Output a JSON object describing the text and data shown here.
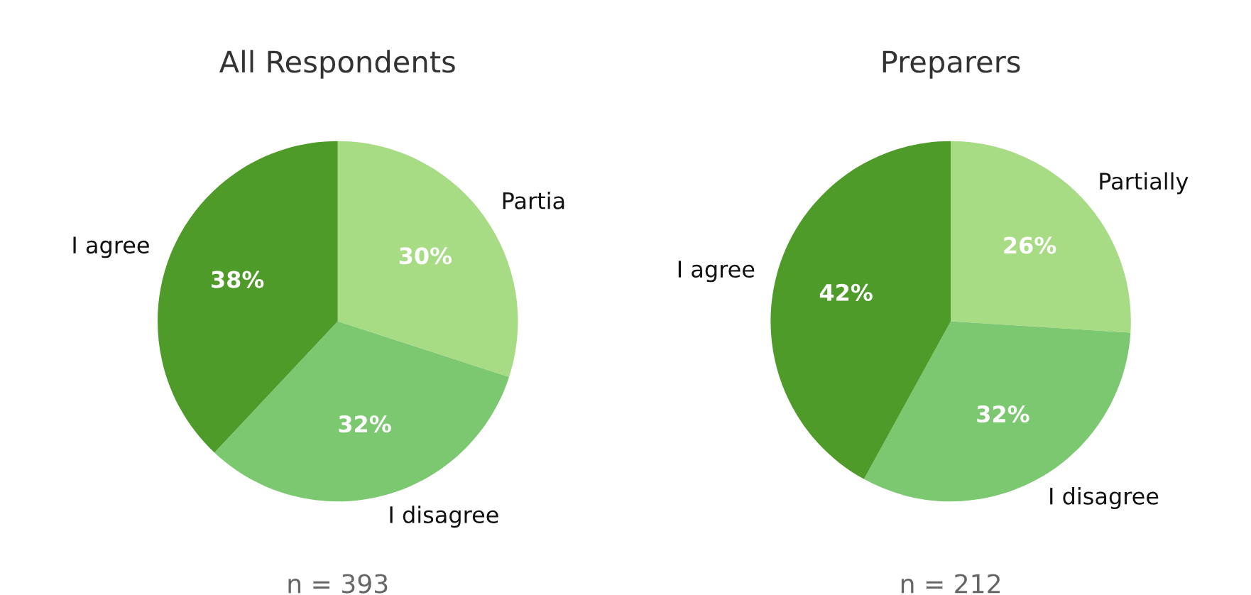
{
  "chart_data": [
    {
      "type": "pie",
      "title": "All Respondents",
      "categories": [
        "Partia",
        "I disagree",
        "I agree"
      ],
      "values": [
        30,
        32,
        38
      ],
      "colors": [
        "#a8dc84",
        "#7cc870",
        "#4f9b2a"
      ],
      "value_labels": [
        "30%",
        "32%",
        "38%"
      ],
      "annotations": [
        "n = 393"
      ],
      "legend": false
    },
    {
      "type": "pie",
      "title": "Preparers",
      "categories": [
        "Partially",
        "I disagree",
        "I agree"
      ],
      "values": [
        26,
        32,
        42
      ],
      "colors": [
        "#a8dc84",
        "#7cc870",
        "#4f9b2a"
      ],
      "value_labels": [
        "26%",
        "32%",
        "42%"
      ],
      "annotations": [
        "n = 212"
      ],
      "legend": false
    }
  ]
}
